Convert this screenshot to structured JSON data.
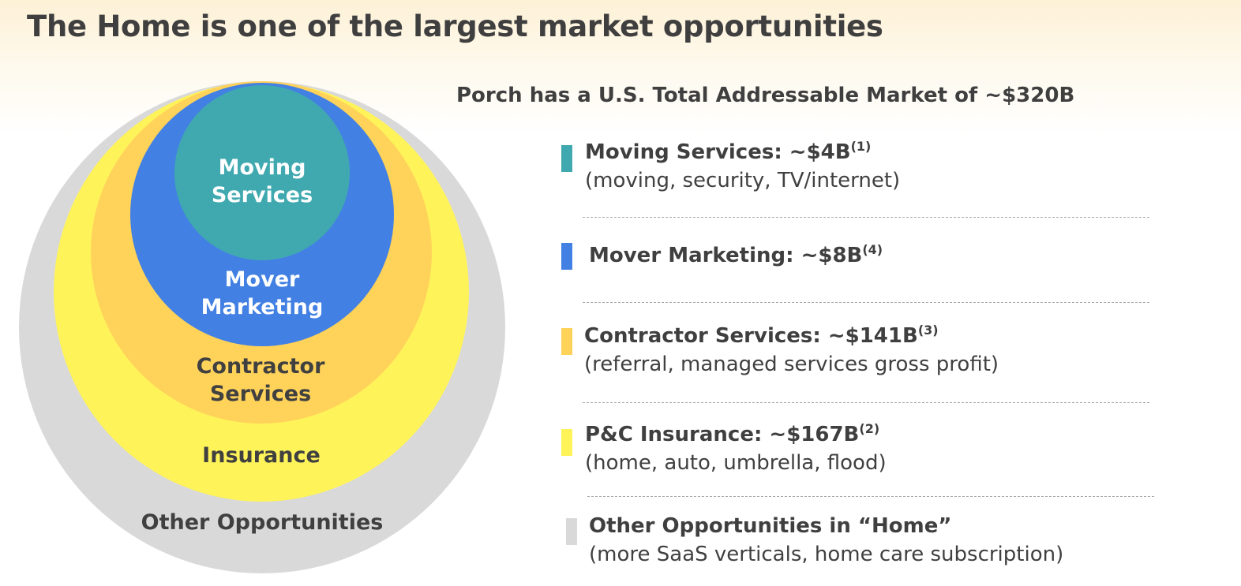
{
  "title": "The Home is one of the largest market opportunities",
  "subtitle": "Porch has a U.S. Total Addressable Market of ~$320B",
  "circles": [
    {
      "name": "other",
      "label_lines": [
        "Other Opportunities"
      ],
      "color": "#d9d9d9",
      "text_color": "#404040"
    },
    {
      "name": "insurance",
      "label_lines": [
        "Insurance"
      ],
      "color": "#fff35a",
      "text_color": "#404040"
    },
    {
      "name": "contractor",
      "label_lines": [
        "Contractor",
        "Services"
      ],
      "color": "#ffd25a",
      "text_color": "#404040"
    },
    {
      "name": "mover-marketing",
      "label_lines": [
        "Mover",
        "Marketing"
      ],
      "color": "#4280e3",
      "text_color": "#ffffff"
    },
    {
      "name": "moving-services",
      "label_lines": [
        "Moving",
        "Services"
      ],
      "color": "#40a9b0",
      "text_color": "#ffffff"
    }
  ],
  "legend": [
    {
      "heading": "Moving Services: ~$4B",
      "footnote": "(1)",
      "detail": "(moving, security, TV/internet)",
      "color": "#40a9b0"
    },
    {
      "heading": "Mover Marketing: ~$8B",
      "footnote": "(4)",
      "detail": "",
      "color": "#4280e3"
    },
    {
      "heading": "Contractor Services: ~$141B",
      "footnote": "(3)",
      "detail": "(referral, managed services gross profit)",
      "color": "#ffd25a"
    },
    {
      "heading": "P&C Insurance: ~$167B",
      "footnote": "(2)",
      "detail": "(home, auto, umbrella, flood)",
      "color": "#fff35a"
    },
    {
      "heading": "Other Opportunities in “Home”",
      "footnote": "",
      "detail": "(more SaaS verticals, home care subscription)",
      "color": "#d9d9d9"
    }
  ]
}
